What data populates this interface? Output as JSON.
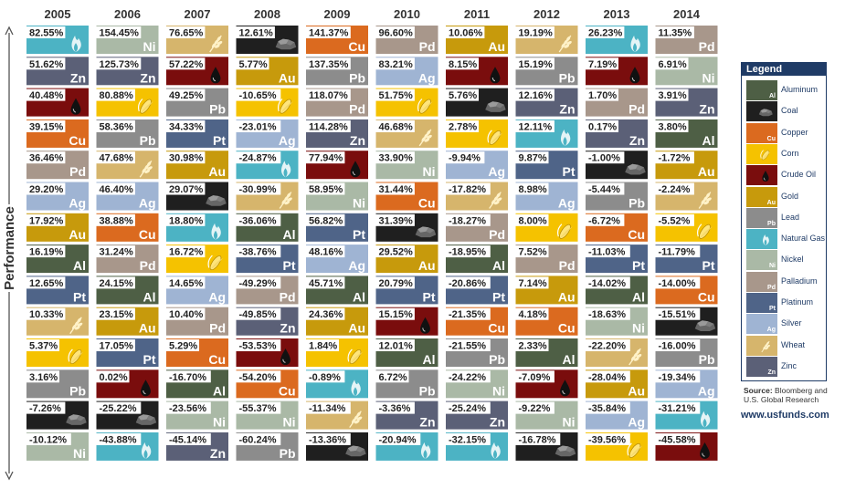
{
  "chart_data": {
    "type": "table",
    "ylabel": "Performance",
    "years": [
      "2005",
      "2006",
      "2007",
      "2008",
      "2009",
      "2010",
      "2011",
      "2012",
      "2013",
      "2014"
    ],
    "columns": [
      [
        [
          "82.55%",
          "Natural Gas"
        ],
        [
          "51.62%",
          "Zinc"
        ],
        [
          "40.48%",
          "Crude Oil"
        ],
        [
          "39.15%",
          "Copper"
        ],
        [
          "36.46%",
          "Palladium"
        ],
        [
          "29.20%",
          "Silver"
        ],
        [
          "17.92%",
          "Gold"
        ],
        [
          "16.19%",
          "Aluminum"
        ],
        [
          "12.65%",
          "Platinum"
        ],
        [
          "10.33%",
          "Wheat"
        ],
        [
          "5.37%",
          "Corn"
        ],
        [
          "3.16%",
          "Lead"
        ],
        [
          "-7.26%",
          "Coal"
        ],
        [
          "-10.12%",
          "Nickel"
        ]
      ],
      [
        [
          "154.45%",
          "Nickel"
        ],
        [
          "125.73%",
          "Zinc"
        ],
        [
          "80.88%",
          "Corn"
        ],
        [
          "58.36%",
          "Lead"
        ],
        [
          "47.68%",
          "Wheat"
        ],
        [
          "46.40%",
          "Silver"
        ],
        [
          "38.88%",
          "Copper"
        ],
        [
          "31.24%",
          "Palladium"
        ],
        [
          "24.15%",
          "Aluminum"
        ],
        [
          "23.15%",
          "Gold"
        ],
        [
          "17.05%",
          "Platinum"
        ],
        [
          "0.02%",
          "Crude Oil"
        ],
        [
          "-25.22%",
          "Coal"
        ],
        [
          "-43.88%",
          "Natural Gas"
        ]
      ],
      [
        [
          "76.65%",
          "Wheat"
        ],
        [
          "57.22%",
          "Crude Oil"
        ],
        [
          "49.25%",
          "Lead"
        ],
        [
          "34.33%",
          "Platinum"
        ],
        [
          "30.98%",
          "Gold"
        ],
        [
          "29.07%",
          "Coal"
        ],
        [
          "18.80%",
          "Natural Gas"
        ],
        [
          "16.72%",
          "Corn"
        ],
        [
          "14.65%",
          "Silver"
        ],
        [
          "10.40%",
          "Palladium"
        ],
        [
          "5.29%",
          "Copper"
        ],
        [
          "-16.70%",
          "Aluminum"
        ],
        [
          "-23.56%",
          "Nickel"
        ],
        [
          "-45.14%",
          "Zinc"
        ]
      ],
      [
        [
          "12.61%",
          "Coal"
        ],
        [
          "5.77%",
          "Gold"
        ],
        [
          "-10.65%",
          "Corn"
        ],
        [
          "-23.01%",
          "Silver"
        ],
        [
          "-24.87%",
          "Natural Gas"
        ],
        [
          "-30.99%",
          "Wheat"
        ],
        [
          "-36.06%",
          "Aluminum"
        ],
        [
          "-38.76%",
          "Platinum"
        ],
        [
          "-49.29%",
          "Palladium"
        ],
        [
          "-49.85%",
          "Zinc"
        ],
        [
          "-53.53%",
          "Crude Oil"
        ],
        [
          "-54.20%",
          "Copper"
        ],
        [
          "-55.37%",
          "Nickel"
        ],
        [
          "-60.24%",
          "Lead"
        ]
      ],
      [
        [
          "141.37%",
          "Copper"
        ],
        [
          "137.35%",
          "Lead"
        ],
        [
          "118.07%",
          "Palladium"
        ],
        [
          "114.28%",
          "Zinc"
        ],
        [
          "77.94%",
          "Crude Oil"
        ],
        [
          "58.95%",
          "Nickel"
        ],
        [
          "56.82%",
          "Platinum"
        ],
        [
          "48.16%",
          "Silver"
        ],
        [
          "45.71%",
          "Aluminum"
        ],
        [
          "24.36%",
          "Gold"
        ],
        [
          "1.84%",
          "Corn"
        ],
        [
          "-0.89%",
          "Natural Gas"
        ],
        [
          "-11.34%",
          "Wheat"
        ],
        [
          "-13.36%",
          "Coal"
        ]
      ],
      [
        [
          "96.60%",
          "Palladium"
        ],
        [
          "83.21%",
          "Silver"
        ],
        [
          "51.75%",
          "Corn"
        ],
        [
          "46.68%",
          "Wheat"
        ],
        [
          "33.90%",
          "Nickel"
        ],
        [
          "31.44%",
          "Copper"
        ],
        [
          "31.39%",
          "Coal"
        ],
        [
          "29.52%",
          "Gold"
        ],
        [
          "20.79%",
          "Platinum"
        ],
        [
          "15.15%",
          "Crude Oil"
        ],
        [
          "12.01%",
          "Aluminum"
        ],
        [
          "6.72%",
          "Lead"
        ],
        [
          "-3.36%",
          "Zinc"
        ],
        [
          "-20.94%",
          "Natural Gas"
        ]
      ],
      [
        [
          "10.06%",
          "Gold"
        ],
        [
          "8.15%",
          "Crude Oil"
        ],
        [
          "5.76%",
          "Coal"
        ],
        [
          "2.78%",
          "Corn"
        ],
        [
          "-9.94%",
          "Silver"
        ],
        [
          "-17.82%",
          "Wheat"
        ],
        [
          "-18.27%",
          "Palladium"
        ],
        [
          "-18.95%",
          "Aluminum"
        ],
        [
          "-20.86%",
          "Platinum"
        ],
        [
          "-21.35%",
          "Copper"
        ],
        [
          "-21.55%",
          "Lead"
        ],
        [
          "-24.22%",
          "Nickel"
        ],
        [
          "-25.24%",
          "Zinc"
        ],
        [
          "-32.15%",
          "Natural Gas"
        ]
      ],
      [
        [
          "19.19%",
          "Wheat"
        ],
        [
          "15.19%",
          "Lead"
        ],
        [
          "12.16%",
          "Zinc"
        ],
        [
          "12.11%",
          "Natural Gas"
        ],
        [
          "9.87%",
          "Platinum"
        ],
        [
          "8.98%",
          "Silver"
        ],
        [
          "8.00%",
          "Corn"
        ],
        [
          "7.52%",
          "Palladium"
        ],
        [
          "7.14%",
          "Gold"
        ],
        [
          "4.18%",
          "Copper"
        ],
        [
          "2.33%",
          "Aluminum"
        ],
        [
          "-7.09%",
          "Crude Oil"
        ],
        [
          "-9.22%",
          "Nickel"
        ],
        [
          "-16.78%",
          "Coal"
        ]
      ],
      [
        [
          "26.23%",
          "Natural Gas"
        ],
        [
          "7.19%",
          "Crude Oil"
        ],
        [
          "1.70%",
          "Palladium"
        ],
        [
          "0.17%",
          "Zinc"
        ],
        [
          "-1.00%",
          "Coal"
        ],
        [
          "-5.44%",
          "Lead"
        ],
        [
          "-6.72%",
          "Copper"
        ],
        [
          "-11.03%",
          "Platinum"
        ],
        [
          "-14.02%",
          "Aluminum"
        ],
        [
          "-18.63%",
          "Nickel"
        ],
        [
          "-22.20%",
          "Wheat"
        ],
        [
          "-28.04%",
          "Gold"
        ],
        [
          "-35.84%",
          "Silver"
        ],
        [
          "-39.56%",
          "Corn"
        ]
      ],
      [
        [
          "11.35%",
          "Palladium"
        ],
        [
          "6.91%",
          "Nickel"
        ],
        [
          "3.91%",
          "Zinc"
        ],
        [
          "3.80%",
          "Aluminum"
        ],
        [
          "-1.72%",
          "Gold"
        ],
        [
          "-2.24%",
          "Wheat"
        ],
        [
          "-5.52%",
          "Corn"
        ],
        [
          "-11.79%",
          "Platinum"
        ],
        [
          "-14.00%",
          "Copper"
        ],
        [
          "-15.51%",
          "Coal"
        ],
        [
          "-16.00%",
          "Lead"
        ],
        [
          "-19.34%",
          "Silver"
        ],
        [
          "-31.21%",
          "Natural Gas"
        ],
        [
          "-45.58%",
          "Crude Oil"
        ]
      ]
    ]
  },
  "commodities": {
    "Aluminum": {
      "symbol": "Al",
      "icon": "",
      "color": "#4e5f45"
    },
    "Coal": {
      "symbol": "",
      "icon": "coal-icon",
      "color": "#1f1f1f"
    },
    "Copper": {
      "symbol": "Cu",
      "icon": "",
      "color": "#db6a1f"
    },
    "Corn": {
      "symbol": "",
      "icon": "corn-icon",
      "color": "#f5c200"
    },
    "Crude Oil": {
      "symbol": "",
      "icon": "oil-drop-icon",
      "color": "#7a0d0d"
    },
    "Gold": {
      "symbol": "Au",
      "icon": "",
      "color": "#c79a0c"
    },
    "Lead": {
      "symbol": "Pb",
      "icon": "",
      "color": "#8c8c8c"
    },
    "Natural Gas": {
      "symbol": "",
      "icon": "flame-icon",
      "color": "#4cb3c4"
    },
    "Nickel": {
      "symbol": "Ni",
      "icon": "",
      "color": "#aab9a6"
    },
    "Palladium": {
      "symbol": "Pd",
      "icon": "",
      "color": "#a8978b"
    },
    "Platinum": {
      "symbol": "Pt",
      "icon": "",
      "color": "#4f6488"
    },
    "Silver": {
      "symbol": "Ag",
      "icon": "",
      "color": "#9fb4d3"
    },
    "Wheat": {
      "symbol": "",
      "icon": "wheat-icon",
      "color": "#d6b56c"
    },
    "Zinc": {
      "symbol": "Zn",
      "icon": "",
      "color": "#5b6077"
    }
  },
  "legend": {
    "title": "Legend",
    "items": [
      "Aluminum",
      "Coal",
      "Copper",
      "Corn",
      "Crude Oil",
      "Gold",
      "Lead",
      "Natural Gas",
      "Nickel",
      "Palladium",
      "Platinum",
      "Silver",
      "Wheat",
      "Zinc"
    ]
  },
  "source": {
    "label": "Source:",
    "text": "Bloomberg and U.S. Global Research"
  },
  "url": "www.usfunds.com"
}
